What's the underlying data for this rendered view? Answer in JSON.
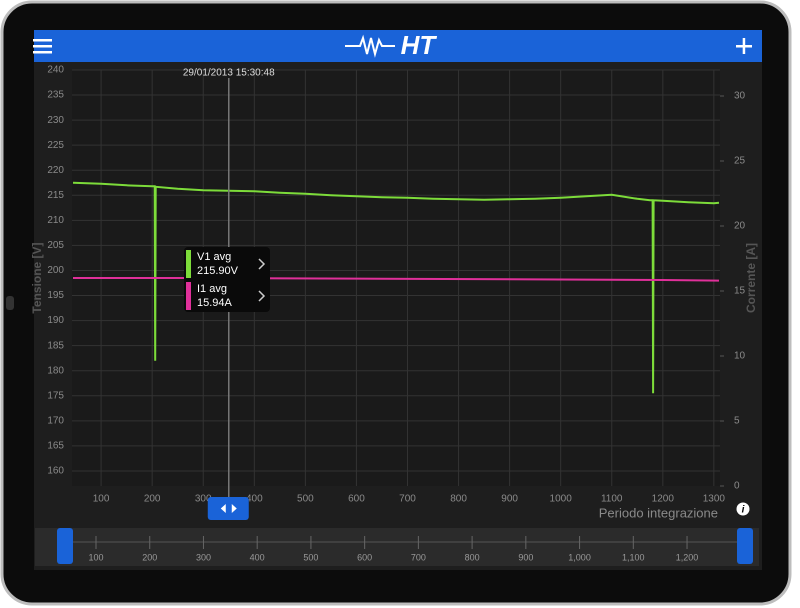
{
  "header": {
    "logo": "HT"
  },
  "chart_data": {
    "type": "line",
    "xlabel": "Periodo integrazione",
    "ylabel": "Tensione [V]",
    "y2label": "Corrente [A]",
    "xlim": [
      43,
      1312
    ],
    "xticks": [
      100,
      200,
      300,
      400,
      500,
      600,
      700,
      800,
      900,
      1000,
      1100,
      1200,
      1300
    ],
    "ylim": [
      157,
      240
    ],
    "yticks": [
      160,
      165,
      170,
      175,
      180,
      185,
      190,
      195,
      200,
      205,
      210,
      215,
      220,
      225,
      230,
      235,
      240
    ],
    "y2lim": [
      0,
      32
    ],
    "y2ticks": [
      0,
      5,
      10,
      15,
      20,
      25,
      30
    ],
    "grid": true,
    "series": [
      {
        "name": "V1 avg",
        "color": "#7ddc3a",
        "x": [
          45,
          100,
          150,
          200,
          205,
          206,
          207,
          250,
          300,
          350,
          400,
          450,
          500,
          550,
          600,
          650,
          700,
          750,
          800,
          850,
          900,
          950,
          1000,
          1050,
          1100,
          1150,
          1175,
          1180,
          1181,
          1182,
          1200,
          1250,
          1300,
          1310
        ],
        "values": [
          217.5,
          217.3,
          217,
          216.8,
          216.8,
          182,
          216.7,
          216.3,
          216,
          215.9,
          215.8,
          215.5,
          215.3,
          215,
          214.8,
          214.6,
          214.5,
          214.3,
          214.2,
          214.1,
          214.2,
          214.3,
          214.5,
          214.8,
          215.1,
          214.3,
          214,
          214,
          175.5,
          214,
          213.9,
          213.6,
          213.4,
          213.5
        ]
      },
      {
        "name": "I1 avg",
        "color": "#e0309a",
        "axis": "y2",
        "x": [
          45,
          300,
          600,
          900,
          1200,
          1310
        ],
        "values": [
          16.0,
          16.0,
          15.95,
          15.9,
          15.85,
          15.8
        ]
      }
    ],
    "cursor": {
      "x": 350,
      "label": "29/01/2013 15:30:48"
    }
  },
  "tooltip": {
    "items": [
      {
        "name": "V1 avg",
        "value": "215.90V"
      },
      {
        "name": "I1 avg",
        "value": "15.94A"
      }
    ]
  },
  "overview": {
    "xticks": [
      {
        "value": 100,
        "label": "100"
      },
      {
        "value": 200,
        "label": "200"
      },
      {
        "value": 300,
        "label": "300"
      },
      {
        "value": 400,
        "label": "400"
      },
      {
        "value": 500,
        "label": "500"
      },
      {
        "value": 600,
        "label": "600"
      },
      {
        "value": 700,
        "label": "700"
      },
      {
        "value": 800,
        "label": "800"
      },
      {
        "value": 900,
        "label": "900"
      },
      {
        "value": 1000,
        "label": "1,000"
      },
      {
        "value": 1100,
        "label": "1,100"
      },
      {
        "value": 1200,
        "label": "1,200"
      }
    ]
  }
}
